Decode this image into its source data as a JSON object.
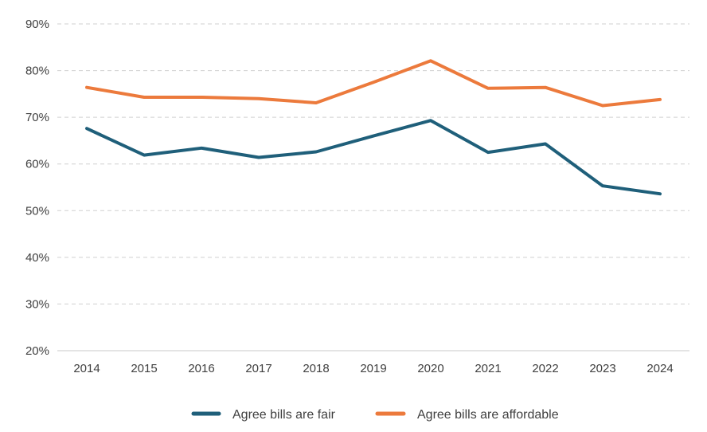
{
  "chart_data": {
    "type": "line",
    "x": [
      "2014",
      "2015",
      "2016",
      "2017",
      "2018",
      "2019",
      "2020",
      "2021",
      "2022",
      "2023",
      "2024"
    ],
    "series": [
      {
        "name": "Agree bills are fair",
        "color": "#1f5f7a",
        "values": [
          67.6,
          61.9,
          63.4,
          61.4,
          62.6,
          66.0,
          69.3,
          62.5,
          64.3,
          55.3,
          53.6
        ]
      },
      {
        "name": "Agree bills are affordable",
        "color": "#ec7a3c",
        "values": [
          76.4,
          74.3,
          74.3,
          74.0,
          73.1,
          77.5,
          82.1,
          76.2,
          76.4,
          72.5,
          73.8
        ]
      }
    ],
    "y_ticks": [
      "20%",
      "30%",
      "40%",
      "50%",
      "60%",
      "70%",
      "80%",
      "90%"
    ],
    "ylim": [
      20,
      90
    ],
    "y_unit": "%",
    "grid": true,
    "legend_position": "bottom"
  }
}
